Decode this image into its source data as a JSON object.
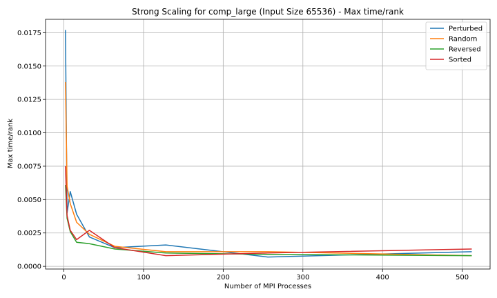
{
  "chart_data": {
    "type": "line",
    "title": "Strong Scaling for comp_large (Input Size 65536) - Max time/rank",
    "xlabel": "Number of MPI Processes",
    "ylabel": "Max time/rank",
    "x": [
      2,
      4,
      8,
      16,
      32,
      64,
      128,
      256,
      512
    ],
    "xlim": [
      -23,
      535
    ],
    "ylim": [
      -0.0002,
      0.0185
    ],
    "xticks": [
      0,
      100,
      200,
      300,
      400,
      500
    ],
    "yticks": [
      0.0,
      0.0025,
      0.005,
      0.0075,
      0.01,
      0.0125,
      0.015,
      0.0175
    ],
    "grid": true,
    "legend_position": "top-right",
    "series": [
      {
        "name": "Perturbed",
        "color": "#1f77b4",
        "values": [
          0.0177,
          0.004,
          0.0056,
          0.0039,
          0.0022,
          0.0014,
          0.0016,
          0.0007,
          0.0011
        ]
      },
      {
        "name": "Random",
        "color": "#ff7f0e",
        "values": [
          0.0138,
          0.006,
          0.0047,
          0.0033,
          0.0024,
          0.0015,
          0.0011,
          0.0011,
          0.0008
        ]
      },
      {
        "name": "Reversed",
        "color": "#2ca02c",
        "values": [
          0.0061,
          0.0036,
          0.0026,
          0.0018,
          0.0017,
          0.0013,
          0.001,
          0.0009,
          0.0008
        ]
      },
      {
        "name": "Sorted",
        "color": "#d62728",
        "values": [
          0.0075,
          0.0038,
          0.0027,
          0.002,
          0.0027,
          0.0014,
          0.0008,
          0.001,
          0.0013
        ]
      }
    ]
  }
}
